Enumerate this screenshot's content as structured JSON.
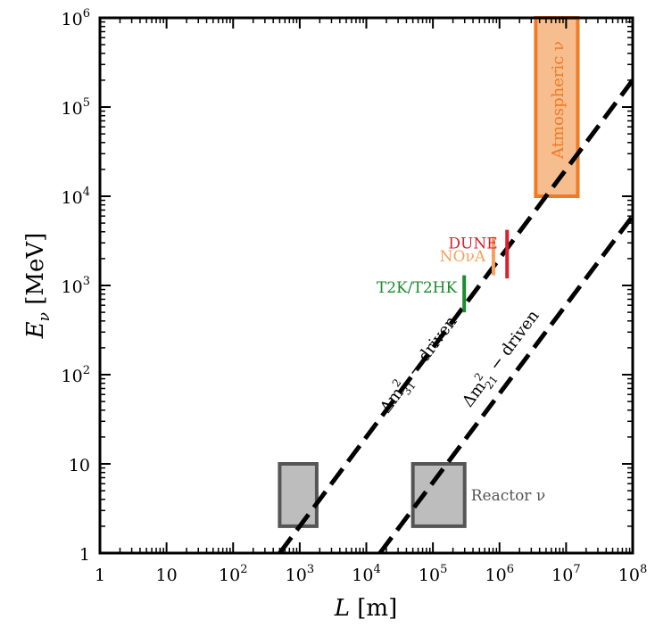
{
  "chart_data": {
    "type": "scatter",
    "title": "",
    "xlabel": "L [m]",
    "ylabel": "E_ν [MeV]",
    "xscale": "log",
    "yscale": "log",
    "xlim": [
      1,
      100000000
    ],
    "ylim": [
      1,
      1000000
    ],
    "grid": false,
    "x_ticks": [
      {
        "value": 1,
        "base": "1",
        "exp": ""
      },
      {
        "value": 10,
        "base": "10",
        "exp": ""
      },
      {
        "value": 100,
        "base": "10",
        "exp": "2"
      },
      {
        "value": 1000,
        "base": "10",
        "exp": "3"
      },
      {
        "value": 10000,
        "base": "10",
        "exp": "4"
      },
      {
        "value": 100000,
        "base": "10",
        "exp": "5"
      },
      {
        "value": 1000000,
        "base": "10",
        "exp": "6"
      },
      {
        "value": 10000000,
        "base": "10",
        "exp": "7"
      },
      {
        "value": 100000000,
        "base": "10",
        "exp": "8"
      }
    ],
    "y_ticks": [
      {
        "value": 1,
        "base": "1",
        "exp": ""
      },
      {
        "value": 10,
        "base": "10",
        "exp": ""
      },
      {
        "value": 100,
        "base": "10",
        "exp": "2"
      },
      {
        "value": 1000,
        "base": "10",
        "exp": "3"
      },
      {
        "value": 10000,
        "base": "10",
        "exp": "4"
      },
      {
        "value": 100000,
        "base": "10",
        "exp": "5"
      },
      {
        "value": 1000000,
        "base": "10",
        "exp": "6"
      }
    ],
    "lines": [
      {
        "label_main": "Δm",
        "label_sub": "31",
        "label_sup": "2",
        "label_rest": " − driven",
        "style": "dashed",
        "color": "#000000",
        "points": [
          [
            500,
            1
          ],
          [
            100000000,
            200000
          ]
        ]
      },
      {
        "label_main": "Δm",
        "label_sub": "21",
        "label_sup": "2",
        "label_rest": " − driven",
        "style": "dashed",
        "color": "#000000",
        "points": [
          [
            16000,
            1
          ],
          [
            100000000,
            6000
          ]
        ]
      }
    ],
    "regions": [
      {
        "label": "",
        "x": [
          500,
          1800
        ],
        "y": [
          2,
          10
        ],
        "fill": "#bdbdbd",
        "stroke": "#555555"
      },
      {
        "label": "Reactor ν",
        "x": [
          50000,
          300000
        ],
        "y": [
          2,
          10
        ],
        "fill": "#bdbdbd",
        "stroke": "#555555"
      },
      {
        "label": "Atmospheric ν",
        "x": [
          3500000,
          15000000
        ],
        "y": [
          10000,
          1000000
        ],
        "fill": "#f6bd8e",
        "stroke": "#f07a25"
      }
    ],
    "experiments": [
      {
        "label": "T2K/T2HK",
        "L": 295000,
        "E": [
          500,
          1300
        ],
        "color": "#1e8a2e"
      },
      {
        "label": "NOνA",
        "L": 810000,
        "E": [
          1300,
          3500
        ],
        "color": "#f5a15c"
      },
      {
        "label": "DUNE",
        "L": 1300000,
        "E": [
          1200,
          4200
        ],
        "color": "#d8202e"
      }
    ]
  }
}
